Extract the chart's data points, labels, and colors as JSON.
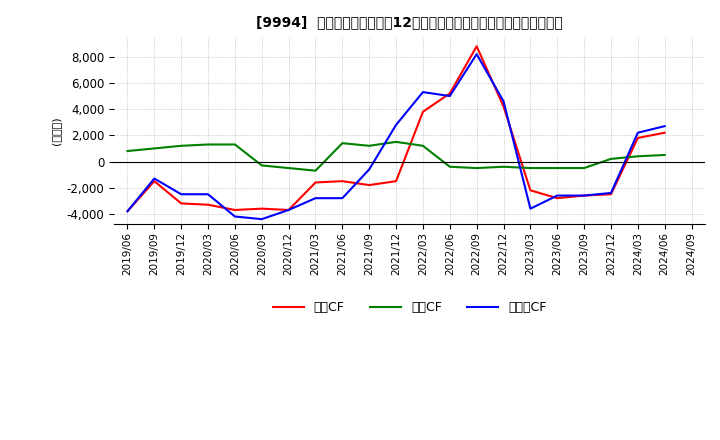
{
  "title": "[9994]  キャッシュフローの12か月移動合計の対前年同期増減額の推移",
  "ylabel": "(百万円)",
  "ylim": [
    -4800,
    9500
  ],
  "yticks": [
    -4000,
    -2000,
    0,
    2000,
    4000,
    6000,
    8000
  ],
  "background_color": "#ffffff",
  "grid_color": "#aaaaaa",
  "dates": [
    "2019/06",
    "2019/09",
    "2019/12",
    "2020/03",
    "2020/06",
    "2020/09",
    "2020/12",
    "2021/03",
    "2021/06",
    "2021/09",
    "2021/12",
    "2022/03",
    "2022/06",
    "2022/09",
    "2022/12",
    "2023/03",
    "2023/06",
    "2023/09",
    "2023/12",
    "2024/03",
    "2024/06",
    "2024/09"
  ],
  "operating_cf": [
    -3800,
    -1500,
    -3200,
    -3300,
    -3700,
    -3600,
    -3700,
    -1600,
    -1500,
    -1800,
    -1500,
    3800,
    5200,
    8800,
    4200,
    -2200,
    -2800,
    -2600,
    -2500,
    1800,
    2200,
    null
  ],
  "investing_cf": [
    800,
    1000,
    1200,
    1300,
    1300,
    -300,
    -500,
    -700,
    1400,
    1200,
    1500,
    1200,
    -400,
    -500,
    -400,
    -500,
    -500,
    -500,
    200,
    400,
    500,
    null
  ],
  "free_cf": [
    -3800,
    -1300,
    -2500,
    -2500,
    -4200,
    -4400,
    -3700,
    -2800,
    -2800,
    -600,
    2800,
    5300,
    5000,
    8200,
    4600,
    -3600,
    -2600,
    -2600,
    -2400,
    2200,
    2700,
    null
  ],
  "operating_color": "#ff0000",
  "investing_color": "#008000",
  "free_color": "#0000ff",
  "legend_labels": [
    "営業CF",
    "投資CF",
    "フリーCF"
  ]
}
